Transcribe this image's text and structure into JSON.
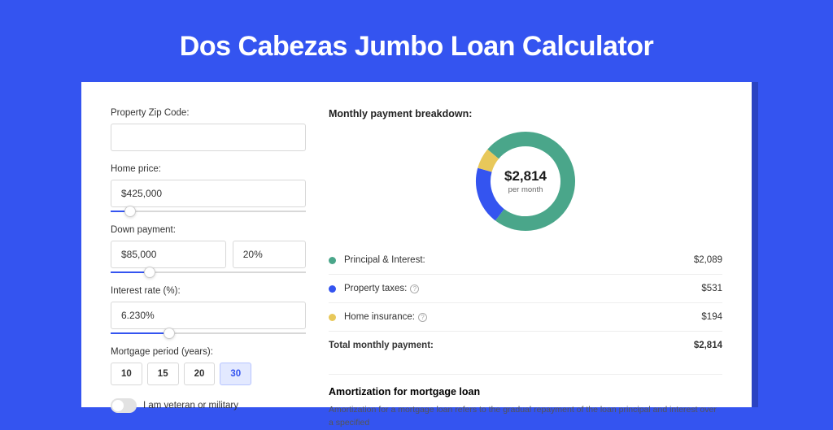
{
  "page": {
    "title": "Dos Cabezas Jumbo Loan Calculator",
    "bg_color": "#3454f0",
    "shadow_color": "#2a43c2"
  },
  "form": {
    "zip": {
      "label": "Property Zip Code:",
      "value": ""
    },
    "home_price": {
      "label": "Home price:",
      "value": "$425,000",
      "slider_pct": 10
    },
    "down_payment": {
      "label": "Down payment:",
      "value": "$85,000",
      "pct_value": "20%",
      "slider_pct": 20
    },
    "interest": {
      "label": "Interest rate (%):",
      "value": "6.230%",
      "slider_pct": 30
    },
    "period": {
      "label": "Mortgage period (years):",
      "options": [
        "10",
        "15",
        "20",
        "30"
      ],
      "active": "30"
    },
    "veteran": {
      "label": "I am veteran or military",
      "on": false
    }
  },
  "breakdown": {
    "title": "Monthly payment breakdown:",
    "donut": {
      "amount": "$2,814",
      "sub": "per month",
      "slices": [
        {
          "name": "principal_interest",
          "pct": 74.2,
          "color": "#4aa68a"
        },
        {
          "name": "property_taxes",
          "pct": 18.9,
          "color": "#3454f0"
        },
        {
          "name": "home_insurance",
          "pct": 6.9,
          "color": "#e8c85a"
        }
      ],
      "stroke_width": 18,
      "radius": 52
    },
    "legend": [
      {
        "label": "Principal & Interest:",
        "color": "#4aa68a",
        "value": "$2,089",
        "info": false
      },
      {
        "label": "Property taxes:",
        "color": "#3454f0",
        "value": "$531",
        "info": true
      },
      {
        "label": "Home insurance:",
        "color": "#e8c85a",
        "value": "$194",
        "info": true
      }
    ],
    "total": {
      "label": "Total monthly payment:",
      "value": "$2,814"
    }
  },
  "amortization": {
    "title": "Amortization for mortgage loan",
    "text": "Amortization for a mortgage loan refers to the gradual repayment of the loan principal and interest over a specified"
  }
}
